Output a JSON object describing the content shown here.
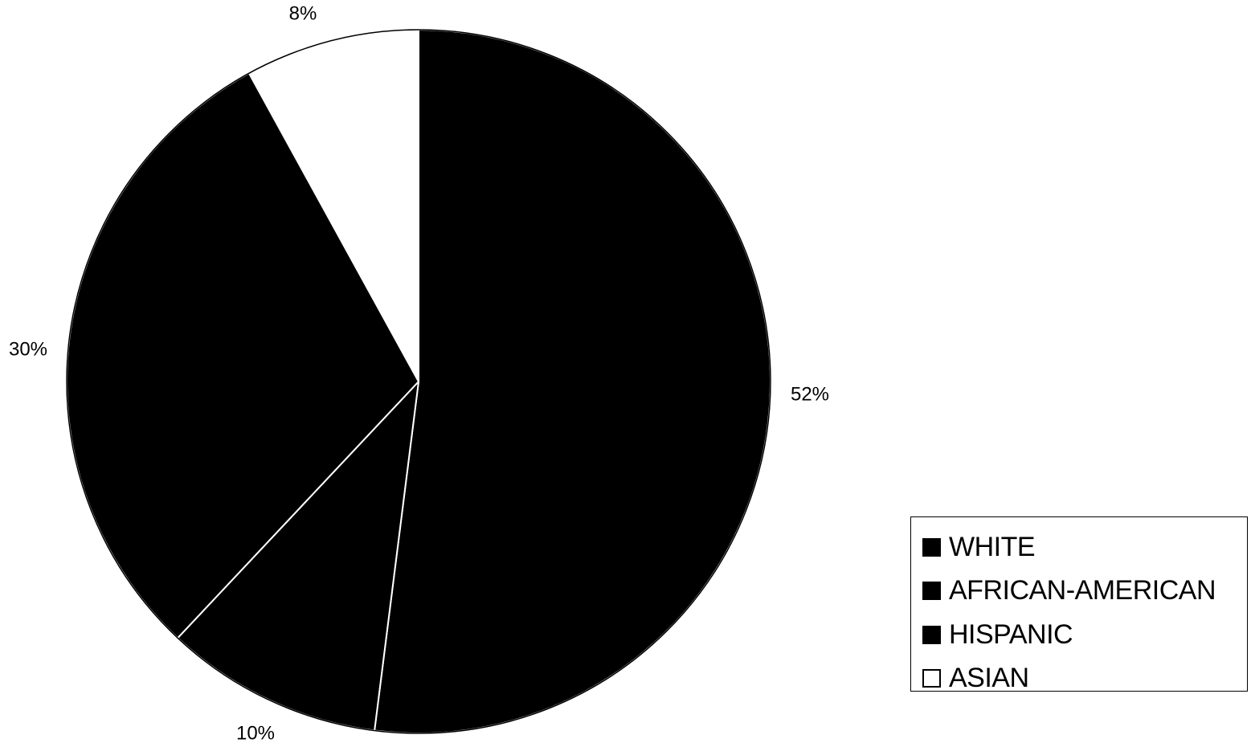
{
  "chart_data": {
    "type": "pie",
    "title": "",
    "start_angle_deg": 0,
    "direction": "clockwise",
    "categories": [
      "WHITE",
      "AFRICAN-AMERICAN",
      "HISPANIC",
      "ASIAN"
    ],
    "values": [
      52,
      10,
      30,
      8
    ],
    "data_labels": [
      "52%",
      "10%",
      "30%",
      "8%"
    ],
    "colors": [
      "#000000",
      "#000000",
      "#000000",
      "#ffffff"
    ],
    "slice_stroke": "#ffffff",
    "legend_position": "bottom-right",
    "legend": [
      {
        "label": "WHITE",
        "color": "#000000"
      },
      {
        "label": "AFRICAN-AMERICAN",
        "color": "#000000"
      },
      {
        "label": "HISPANIC",
        "color": "#000000"
      },
      {
        "label": "ASIAN",
        "color": "#ffffff"
      }
    ]
  }
}
